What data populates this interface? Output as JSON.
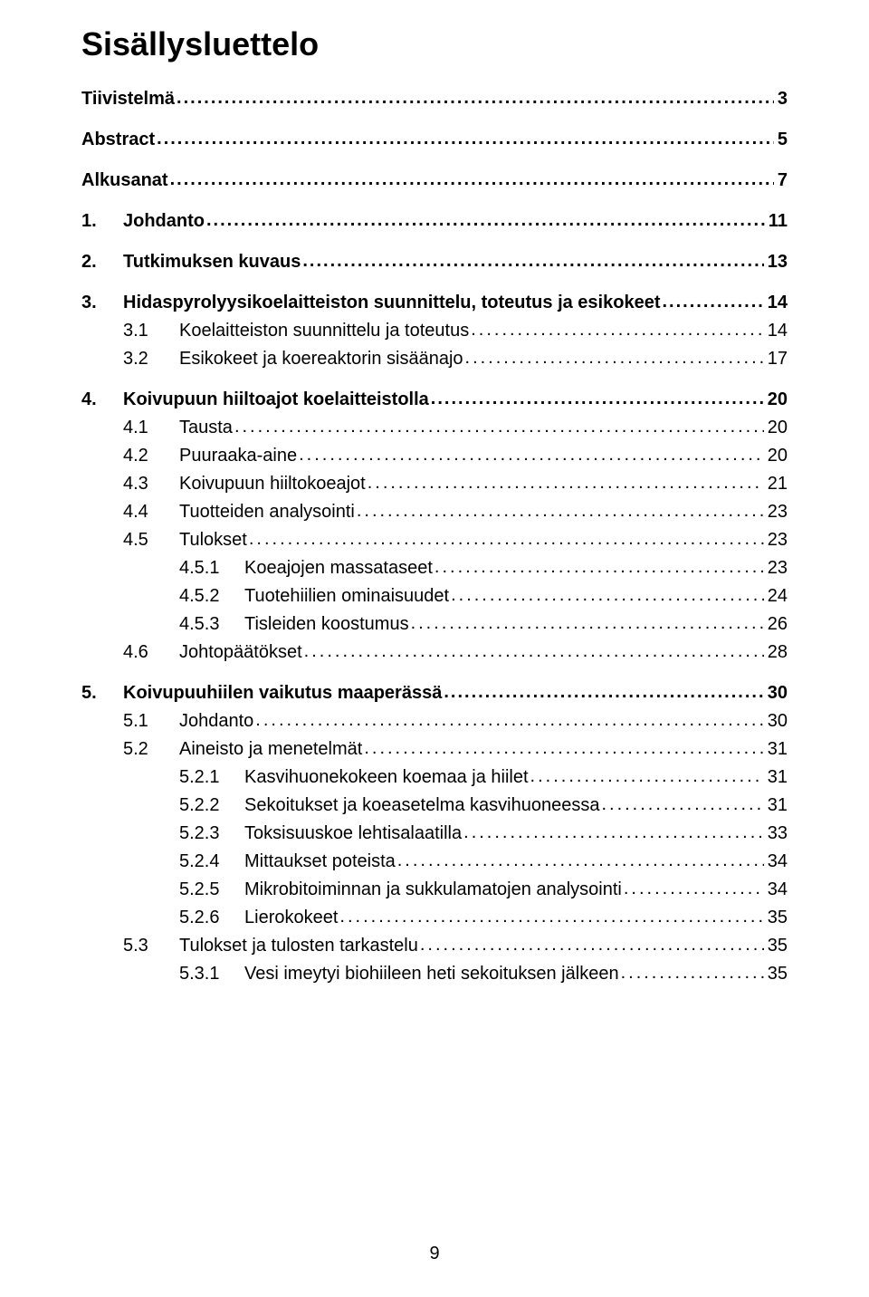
{
  "title": "Sisällysluettelo",
  "footerPage": "9",
  "toc": [
    {
      "level": 0,
      "bold": true,
      "num": "",
      "label": "Tiivistelmä",
      "page": "3",
      "spacerAfter": true
    },
    {
      "level": 0,
      "bold": true,
      "num": "",
      "label": "Abstract",
      "page": "5",
      "spacerAfter": true
    },
    {
      "level": 0,
      "bold": true,
      "num": "",
      "label": "Alkusanat",
      "page": "7",
      "spacerAfter": true
    },
    {
      "level": 1,
      "bold": true,
      "num": "1.",
      "label": "Johdanto",
      "page": "11",
      "spacerAfter": true
    },
    {
      "level": 1,
      "bold": true,
      "num": "2.",
      "label": "Tutkimuksen kuvaus",
      "page": "13",
      "spacerAfter": true
    },
    {
      "level": 1,
      "bold": true,
      "num": "3.",
      "label": "Hidaspyrolyysikoelaitteiston suunnittelu, toteutus ja esikokeet",
      "page": "14",
      "spacerAfter": false
    },
    {
      "level": 2,
      "bold": false,
      "num": "3.1",
      "label": "Koelaitteiston suunnittelu ja toteutus",
      "page": "14",
      "spacerAfter": false
    },
    {
      "level": 2,
      "bold": false,
      "num": "3.2",
      "label": "Esikokeet ja koereaktorin sisäänajo",
      "page": "17",
      "spacerAfter": true
    },
    {
      "level": 1,
      "bold": true,
      "num": "4.",
      "label": "Koivupuun hiiltoajot koelaitteistolla",
      "page": "20",
      "spacerAfter": false
    },
    {
      "level": 2,
      "bold": false,
      "num": "4.1",
      "label": "Tausta",
      "page": "20",
      "spacerAfter": false
    },
    {
      "level": 2,
      "bold": false,
      "num": "4.2",
      "label": "Puuraaka-aine",
      "page": "20",
      "spacerAfter": false
    },
    {
      "level": 2,
      "bold": false,
      "num": "4.3",
      "label": "Koivupuun hiiltokoeajot",
      "page": "21",
      "spacerAfter": false
    },
    {
      "level": 2,
      "bold": false,
      "num": "4.4",
      "label": "Tuotteiden analysointi",
      "page": "23",
      "spacerAfter": false
    },
    {
      "level": 2,
      "bold": false,
      "num": "4.5",
      "label": "Tulokset",
      "page": "23",
      "spacerAfter": false
    },
    {
      "level": 3,
      "bold": false,
      "num": "4.5.1",
      "label": "Koeajojen massataseet",
      "page": "23",
      "spacerAfter": false
    },
    {
      "level": 3,
      "bold": false,
      "num": "4.5.2",
      "label": "Tuotehiilien ominaisuudet",
      "page": "24",
      "spacerAfter": false
    },
    {
      "level": 3,
      "bold": false,
      "num": "4.5.3",
      "label": "Tisleiden koostumus",
      "page": "26",
      "spacerAfter": false
    },
    {
      "level": 2,
      "bold": false,
      "num": "4.6",
      "label": "Johtopäätökset",
      "page": "28",
      "spacerAfter": true
    },
    {
      "level": 1,
      "bold": true,
      "num": "5.",
      "label": "Koivupuuhiilen vaikutus maaperässä",
      "page": "30",
      "spacerAfter": false
    },
    {
      "level": 2,
      "bold": false,
      "num": "5.1",
      "label": "Johdanto",
      "page": "30",
      "spacerAfter": false
    },
    {
      "level": 2,
      "bold": false,
      "num": "5.2",
      "label": "Aineisto ja menetelmät",
      "page": "31",
      "spacerAfter": false
    },
    {
      "level": 3,
      "bold": false,
      "num": "5.2.1",
      "label": "Kasvihuonekokeen koemaa ja hiilet",
      "page": "31",
      "spacerAfter": false
    },
    {
      "level": 3,
      "bold": false,
      "num": "5.2.2",
      "label": "Sekoitukset ja koeasetelma kasvihuoneessa",
      "page": "31",
      "spacerAfter": false
    },
    {
      "level": 3,
      "bold": false,
      "num": "5.2.3",
      "label": "Toksisuuskoe lehtisalaatilla",
      "page": "33",
      "spacerAfter": false
    },
    {
      "level": 3,
      "bold": false,
      "num": "5.2.4",
      "label": "Mittaukset poteista",
      "page": "34",
      "spacerAfter": false
    },
    {
      "level": 3,
      "bold": false,
      "num": "5.2.5",
      "label": "Mikrobitoiminnan ja sukkulamatojen analysointi",
      "page": "34",
      "spacerAfter": false
    },
    {
      "level": 3,
      "bold": false,
      "num": "5.2.6",
      "label": "Lierokokeet",
      "page": "35",
      "spacerAfter": false
    },
    {
      "level": 2,
      "bold": false,
      "num": "5.3",
      "label": "Tulokset ja tulosten tarkastelu",
      "page": "35",
      "spacerAfter": false
    },
    {
      "level": 3,
      "bold": false,
      "num": "5.3.1",
      "label": "Vesi imeytyi biohiileen heti sekoituksen jälkeen",
      "page": "35",
      "spacerAfter": false
    }
  ]
}
